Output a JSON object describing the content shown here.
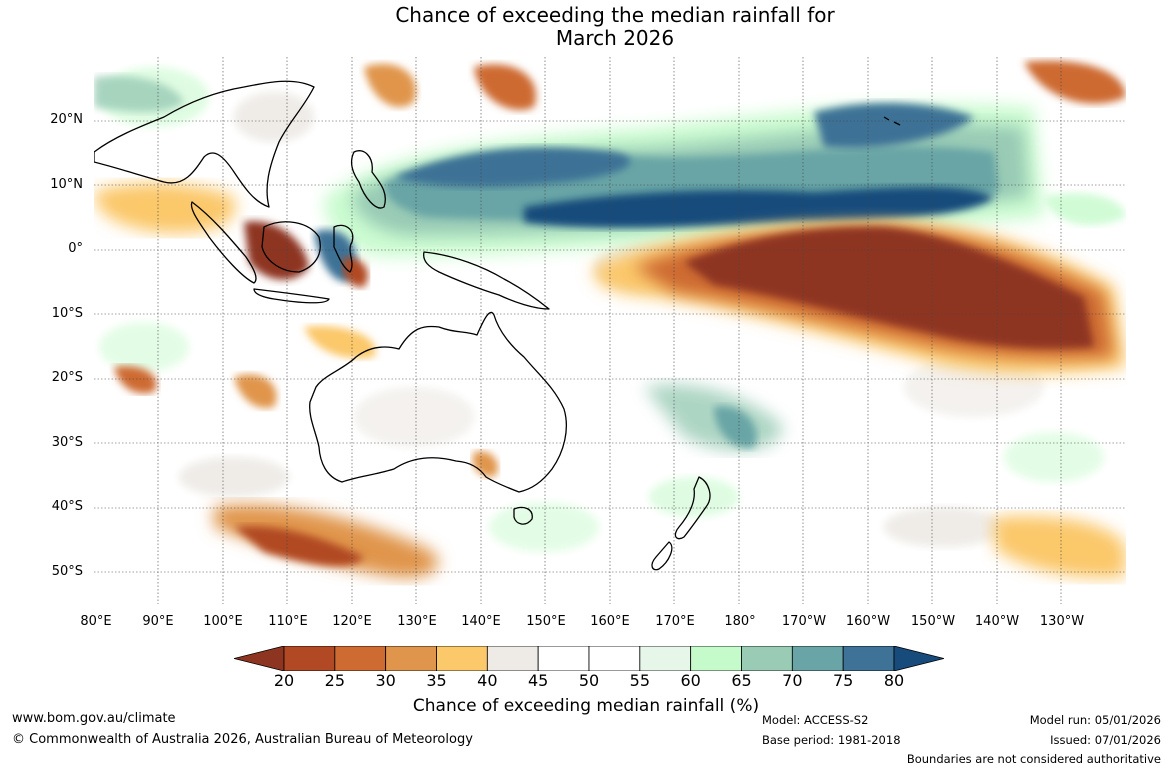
{
  "title": {
    "line1": "Chance of exceeding the median rainfall for",
    "line2": "March 2026"
  },
  "map": {
    "lat_labels": [
      "20°N",
      "10°N",
      "0°",
      "10°S",
      "20°S",
      "30°S",
      "40°S",
      "50°S"
    ],
    "lon_labels": [
      "80°E",
      "90°E",
      "100°E",
      "110°E",
      "120°E",
      "130°E",
      "140°E",
      "150°E",
      "160°E",
      "170°E",
      "180°",
      "170°W",
      "160°W",
      "150°W",
      "140°W",
      "130°W"
    ]
  },
  "colorbar": {
    "ticks": [
      "20",
      "25",
      "30",
      "35",
      "40",
      "45",
      "50",
      "55",
      "60",
      "65",
      "70",
      "75",
      "80"
    ],
    "colors": [
      "#8e3521",
      "#b14a24",
      "#cd6b32",
      "#e0954c",
      "#fbc86a",
      "#eeebe6",
      "#ffffff",
      "#ffffff",
      "#e6f6e8",
      "#c5fbcb",
      "#99cbb5",
      "#69a5a6",
      "#3e7296",
      "#174b7b"
    ],
    "label": "Chance of exceeding median rainfall (%)"
  },
  "footer": {
    "website": "www.bom.gov.au/climate",
    "copyright": "© Commonwealth of Australia 2026, Australian Bureau of Meteorology",
    "model": "Model: ACCESS-S2",
    "base_period": "Base period: 1981-2018",
    "model_run": "Model run: 05/01/2026",
    "issued": "Issued: 07/01/2026",
    "disclaimer": "Boundaries are not considered authoritative"
  }
}
